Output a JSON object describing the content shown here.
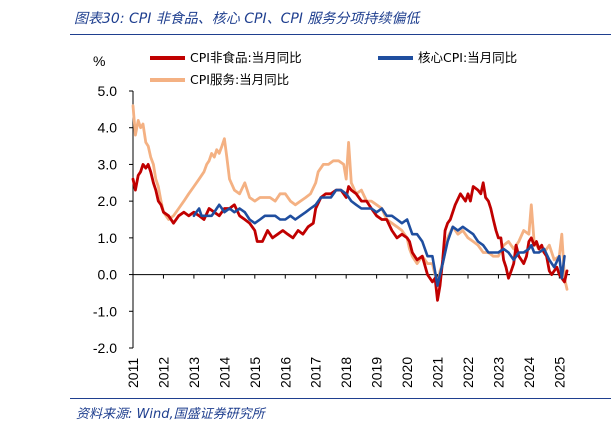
{
  "header": {
    "title": "图表30:  CPI 非食品、核心 CPI、CPI 服务分项持续偏低"
  },
  "footer": {
    "source": "资料来源:  Wind,国盛证券研究所"
  },
  "colors": {
    "brand": "#1f3f8f",
    "cpi_nonfood": "#c00000",
    "core_cpi": "#1f4e9f",
    "cpi_services": "#f4b183"
  },
  "chart_data": {
    "type": "line",
    "ylabel": "%",
    "ylim": [
      -2.0,
      5.0
    ],
    "yticks": [
      "5.0",
      "4.0",
      "3.0",
      "2.0",
      "1.0",
      "0.0",
      "-1.0",
      "-2.0"
    ],
    "xlim": [
      2011.0,
      2025.35
    ],
    "xticks": [
      "2011",
      "2012",
      "2013",
      "2014",
      "2015",
      "2016",
      "2017",
      "2018",
      "2019",
      "2020",
      "2021",
      "2022",
      "2023",
      "2024",
      "2025"
    ],
    "grid": false,
    "legend": "top",
    "series": [
      {
        "name": "CPI非食品:当月同比",
        "color": "#c00000",
        "x": [
          2011.0,
          2011.08,
          2011.17,
          2011.25,
          2011.33,
          2011.42,
          2011.5,
          2011.58,
          2011.67,
          2011.75,
          2011.83,
          2011.92,
          2012.0,
          2012.17,
          2012.33,
          2012.5,
          2012.67,
          2012.83,
          2013.0,
          2013.17,
          2013.33,
          2013.5,
          2013.67,
          2013.83,
          2014.0,
          2014.17,
          2014.33,
          2014.5,
          2014.67,
          2014.83,
          2015.0,
          2015.08,
          2015.25,
          2015.42,
          2015.58,
          2015.75,
          2015.92,
          2016.08,
          2016.25,
          2016.42,
          2016.58,
          2016.75,
          2016.92,
          2017.0,
          2017.17,
          2017.33,
          2017.5,
          2017.67,
          2017.83,
          2018.0,
          2018.08,
          2018.17,
          2018.33,
          2018.5,
          2018.67,
          2018.83,
          2019.0,
          2019.17,
          2019.33,
          2019.5,
          2019.67,
          2019.83,
          2020.0,
          2020.08,
          2020.17,
          2020.33,
          2020.5,
          2020.67,
          2020.83,
          2020.92,
          2021.0,
          2021.08,
          2021.17,
          2021.25,
          2021.33,
          2021.42,
          2021.58,
          2021.75,
          2021.92,
          2022.0,
          2022.08,
          2022.17,
          2022.33,
          2022.42,
          2022.5,
          2022.58,
          2022.67,
          2022.75,
          2022.83,
          2022.92,
          2023.0,
          2023.08,
          2023.17,
          2023.25,
          2023.33,
          2023.42,
          2023.5,
          2023.58,
          2023.67,
          2023.75,
          2023.83,
          2023.92,
          2024.0,
          2024.08,
          2024.17,
          2024.25,
          2024.33,
          2024.42,
          2024.5,
          2024.58,
          2024.67,
          2024.75,
          2024.83,
          2024.92,
          2025.0,
          2025.08,
          2025.17,
          2025.25
        ],
        "y": [
          2.6,
          2.3,
          2.7,
          2.8,
          3.0,
          2.9,
          3.0,
          2.8,
          2.5,
          2.3,
          2.0,
          1.9,
          1.7,
          1.6,
          1.4,
          1.6,
          1.7,
          1.6,
          1.7,
          1.6,
          1.5,
          1.8,
          1.7,
          1.6,
          1.8,
          1.8,
          1.9,
          1.6,
          1.5,
          1.4,
          1.2,
          0.9,
          0.9,
          1.2,
          1.0,
          1.1,
          1.2,
          1.1,
          1.0,
          1.2,
          1.1,
          1.3,
          1.4,
          1.8,
          2.1,
          2.2,
          2.2,
          2.3,
          2.3,
          2.1,
          2.4,
          2.3,
          2.2,
          2.0,
          2.0,
          1.8,
          1.6,
          1.5,
          1.5,
          1.2,
          1.0,
          1.1,
          1.0,
          0.9,
          0.6,
          0.4,
          0.5,
          0.0,
          -0.2,
          -0.1,
          -0.7,
          -0.3,
          0.4,
          1.2,
          1.4,
          1.5,
          1.9,
          2.2,
          2.0,
          2.2,
          2.0,
          2.4,
          2.3,
          2.2,
          2.5,
          2.1,
          2.0,
          1.8,
          1.5,
          1.2,
          1.0,
          1.0,
          0.4,
          0.2,
          -0.1,
          0.1,
          0.3,
          0.8,
          0.5,
          0.4,
          0.3,
          0.5,
          0.9,
          1.0,
          0.8,
          0.9,
          0.7,
          0.8,
          0.6,
          0.5,
          0.1,
          0.0,
          0.1,
          0.2,
          0.0,
          -0.1,
          -0.2,
          0.1
        ]
      },
      {
        "name": "核心CPI:当月同比",
        "color": "#1f4e9f",
        "x": [
          2013.0,
          2013.08,
          2013.17,
          2013.25,
          2013.33,
          2013.42,
          2013.5,
          2013.58,
          2013.67,
          2013.75,
          2013.83,
          2013.92,
          2014.0,
          2014.17,
          2014.33,
          2014.5,
          2014.67,
          2014.83,
          2015.0,
          2015.17,
          2015.33,
          2015.5,
          2015.67,
          2015.83,
          2016.0,
          2016.17,
          2016.33,
          2016.5,
          2016.67,
          2016.83,
          2017.0,
          2017.17,
          2017.33,
          2017.5,
          2017.67,
          2017.83,
          2018.0,
          2018.17,
          2018.33,
          2018.5,
          2018.67,
          2018.83,
          2019.0,
          2019.17,
          2019.33,
          2019.5,
          2019.67,
          2019.83,
          2020.0,
          2020.17,
          2020.33,
          2020.5,
          2020.67,
          2020.83,
          2021.0,
          2021.08,
          2021.17,
          2021.33,
          2021.5,
          2021.67,
          2021.83,
          2022.0,
          2022.17,
          2022.33,
          2022.5,
          2022.67,
          2022.83,
          2023.0,
          2023.17,
          2023.33,
          2023.5,
          2023.67,
          2023.83,
          2024.0,
          2024.08,
          2024.17,
          2024.33,
          2024.5,
          2024.67,
          2024.83,
          2025.0,
          2025.08,
          2025.17
        ],
        "y": [
          1.6,
          1.7,
          1.8,
          1.6,
          1.6,
          1.6,
          1.6,
          1.6,
          1.7,
          1.8,
          1.9,
          1.8,
          1.7,
          1.8,
          1.7,
          1.8,
          1.7,
          1.5,
          1.4,
          1.5,
          1.6,
          1.6,
          1.6,
          1.5,
          1.5,
          1.6,
          1.5,
          1.6,
          1.7,
          1.8,
          1.9,
          2.1,
          2.1,
          2.1,
          2.3,
          2.3,
          2.2,
          2.0,
          1.9,
          1.8,
          1.8,
          1.8,
          1.7,
          1.8,
          1.6,
          1.6,
          1.5,
          1.4,
          1.5,
          1.1,
          1.1,
          0.9,
          0.5,
          0.5,
          -0.3,
          0.0,
          0.3,
          0.9,
          1.3,
          1.2,
          1.3,
          1.2,
          1.1,
          0.9,
          0.8,
          0.6,
          0.6,
          0.6,
          0.7,
          0.6,
          0.4,
          0.6,
          0.6,
          0.7,
          0.8,
          0.6,
          0.6,
          0.7,
          0.4,
          0.2,
          0.5,
          -0.1,
          0.5
        ]
      },
      {
        "name": "CPI服务:当月同比",
        "color": "#f4b183",
        "x": [
          2011.0,
          2011.08,
          2011.17,
          2011.25,
          2011.33,
          2011.42,
          2011.5,
          2011.58,
          2011.67,
          2011.75,
          2011.83,
          2011.92,
          2012.0,
          2012.17,
          2012.33,
          2012.5,
          2012.67,
          2012.83,
          2013.0,
          2013.17,
          2013.33,
          2013.42,
          2013.5,
          2013.58,
          2013.67,
          2013.75,
          2013.83,
          2013.92,
          2014.0,
          2014.08,
          2014.17,
          2014.33,
          2014.5,
          2014.67,
          2014.83,
          2015.0,
          2015.17,
          2015.33,
          2015.5,
          2015.67,
          2015.83,
          2016.0,
          2016.17,
          2016.33,
          2016.5,
          2016.67,
          2016.83,
          2017.0,
          2017.08,
          2017.25,
          2017.42,
          2017.58,
          2017.75,
          2017.92,
          2018.0,
          2018.08,
          2018.17,
          2018.33,
          2018.5,
          2018.67,
          2018.83,
          2019.0,
          2019.17,
          2019.33,
          2019.5,
          2019.67,
          2019.83,
          2020.0,
          2020.08,
          2020.17,
          2020.33,
          2020.5,
          2020.67,
          2020.83,
          2021.0,
          2021.08,
          2021.17,
          2021.33,
          2021.5,
          2021.67,
          2021.83,
          2022.0,
          2022.17,
          2022.33,
          2022.5,
          2022.67,
          2022.83,
          2023.0,
          2023.17,
          2023.33,
          2023.5,
          2023.67,
          2023.83,
          2024.0,
          2024.08,
          2024.17,
          2024.25,
          2024.33,
          2024.5,
          2024.67,
          2024.83,
          2025.0,
          2025.08,
          2025.17,
          2025.25
        ],
        "y": [
          4.6,
          3.8,
          4.2,
          4.0,
          4.1,
          3.6,
          3.5,
          3.2,
          3.0,
          2.6,
          2.4,
          2.0,
          1.7,
          1.5,
          1.6,
          1.8,
          2.0,
          2.2,
          2.4,
          2.6,
          2.8,
          3.0,
          3.1,
          3.3,
          3.2,
          3.4,
          3.3,
          3.5,
          3.7,
          3.2,
          2.6,
          2.3,
          2.2,
          2.5,
          2.1,
          2.0,
          2.1,
          2.1,
          2.1,
          2.0,
          2.2,
          2.2,
          2.0,
          1.9,
          2.0,
          2.1,
          2.2,
          2.5,
          2.8,
          3.0,
          3.0,
          3.1,
          3.1,
          3.0,
          2.6,
          3.6,
          2.5,
          2.2,
          2.3,
          2.0,
          2.0,
          1.9,
          1.8,
          1.5,
          1.4,
          1.3,
          1.2,
          1.0,
          0.7,
          0.5,
          0.3,
          0.5,
          0.3,
          0.3,
          -0.3,
          0.1,
          0.3,
          1.0,
          1.3,
          1.1,
          1.2,
          1.0,
          0.9,
          0.8,
          0.6,
          0.6,
          0.5,
          0.5,
          0.8,
          0.9,
          0.7,
          0.9,
          1.2,
          1.1,
          1.9,
          0.9,
          0.8,
          0.7,
          0.6,
          0.8,
          0.4,
          0.5,
          1.1,
          -0.1,
          -0.4
        ]
      }
    ]
  }
}
